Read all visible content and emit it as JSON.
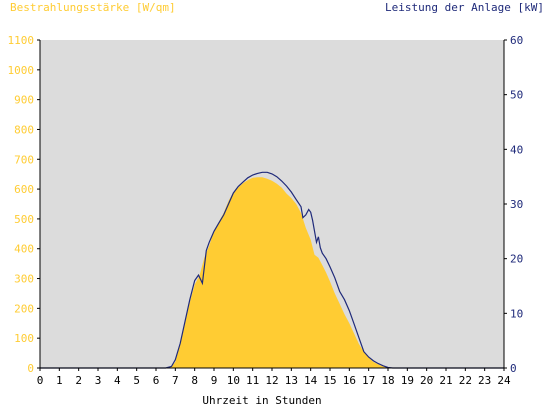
{
  "colors": {
    "plot_background": "#dcdcdc",
    "irradiance": "#ffcc33",
    "power": "#1f2a7a",
    "axis": "#000000"
  },
  "chart_data": {
    "type": "area",
    "title_left": "Bestrahlungsstärke [W/qm]",
    "title_right": "Leistung der Anlage [kW]",
    "xlabel": "Uhrzeit in Stunden",
    "xlim": [
      0,
      24
    ],
    "x_ticks": [
      0,
      1,
      2,
      3,
      4,
      5,
      6,
      7,
      8,
      9,
      10,
      11,
      12,
      13,
      14,
      15,
      16,
      17,
      18,
      19,
      20,
      21,
      22,
      23,
      24
    ],
    "ylim_left": [
      0,
      1100
    ],
    "y_ticks_left": [
      0,
      100,
      200,
      300,
      400,
      500,
      600,
      700,
      800,
      900,
      1000,
      1100
    ],
    "ylim_right": [
      0,
      60
    ],
    "y_ticks_right": [
      0,
      10,
      20,
      30,
      40,
      50,
      60
    ],
    "grid": false,
    "series": [
      {
        "name": "Bestrahlungsstärke [W/qm]",
        "axis": "left",
        "kind": "area",
        "x": [
          0,
          6.5,
          6.8,
          7.0,
          7.25,
          7.5,
          7.75,
          8.0,
          8.25,
          8.5,
          8.75,
          9.0,
          9.25,
          9.5,
          9.75,
          10.0,
          10.25,
          10.5,
          10.75,
          11.0,
          11.25,
          11.5,
          11.75,
          12.0,
          12.25,
          12.5,
          12.75,
          13.0,
          13.25,
          13.5,
          13.75,
          14.0,
          14.2,
          14.4,
          14.6,
          14.8,
          15.0,
          15.25,
          15.5,
          15.75,
          16.0,
          16.25,
          16.5,
          16.75,
          17.0,
          17.25,
          17.5,
          17.75,
          18.0,
          18.25,
          24
        ],
        "y": [
          0,
          0,
          5,
          20,
          80,
          150,
          220,
          280,
          310,
          370,
          410,
          460,
          490,
          520,
          560,
          590,
          605,
          620,
          630,
          638,
          640,
          640,
          635,
          628,
          618,
          605,
          585,
          570,
          550,
          520,
          470,
          430,
          380,
          370,
          345,
          320,
          290,
          250,
          215,
          180,
          150,
          115,
          80,
          55,
          35,
          20,
          12,
          5,
          2,
          0,
          0
        ]
      },
      {
        "name": "Leistung der Anlage [kW]",
        "axis": "right",
        "kind": "line",
        "x": [
          0,
          6.5,
          6.8,
          7.0,
          7.25,
          7.5,
          7.75,
          8.0,
          8.2,
          8.4,
          8.6,
          8.75,
          9.0,
          9.25,
          9.5,
          9.75,
          10.0,
          10.25,
          10.5,
          10.75,
          11.0,
          11.25,
          11.5,
          11.75,
          12.0,
          12.25,
          12.5,
          12.75,
          13.0,
          13.25,
          13.5,
          13.6,
          13.75,
          13.9,
          14.0,
          14.1,
          14.3,
          14.4,
          14.5,
          14.6,
          14.8,
          15.0,
          15.25,
          15.5,
          15.75,
          16.0,
          16.25,
          16.5,
          16.75,
          17.0,
          17.25,
          17.5,
          17.75,
          18.0,
          18.25,
          24
        ],
        "y": [
          0,
          0,
          0.3,
          1.5,
          4.5,
          8.5,
          12.5,
          16,
          17,
          15.5,
          21.5,
          23,
          25,
          26.5,
          28,
          30,
          32,
          33.2,
          34,
          34.8,
          35.3,
          35.6,
          35.8,
          35.8,
          35.5,
          35,
          34.2,
          33.3,
          32.2,
          30.8,
          29.5,
          27.5,
          28,
          29,
          28.5,
          27,
          23,
          24,
          22,
          21,
          20,
          18.5,
          16.5,
          14,
          12.5,
          10.5,
          8,
          5.5,
          3,
          2,
          1.3,
          0.8,
          0.4,
          0.1,
          0,
          0
        ]
      }
    ]
  }
}
